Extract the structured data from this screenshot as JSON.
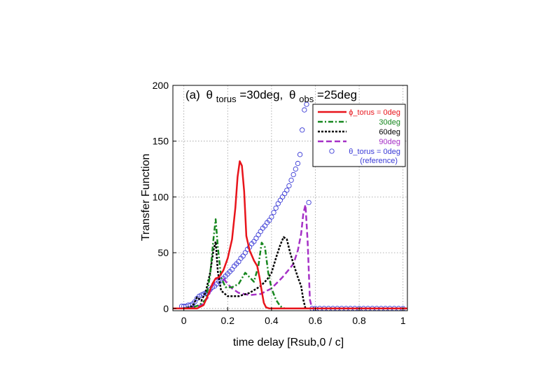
{
  "chart_data": {
    "type": "line",
    "panel_label": "(a)",
    "title_parts": {
      "theta1": "θ",
      "sub1": "torus",
      "eq1": "=30deg,",
      "theta2": "θ",
      "sub2": "obs",
      "eq2": "=25deg"
    },
    "xlabel": "time delay [Rsub,0 / c]",
    "ylabel": "Transfer Function",
    "xlim": [
      -0.05,
      1.02
    ],
    "ylim": [
      -2,
      200
    ],
    "xticks": [
      0,
      0.2,
      0.4,
      0.6,
      0.8,
      1
    ],
    "xtick_labels": [
      "0",
      "0.2",
      "0.4",
      "0.6",
      "0.8",
      "1"
    ],
    "yticks": [
      0,
      50,
      100,
      150,
      200
    ],
    "ytick_labels": [
      "0",
      "50",
      "100",
      "150",
      "200"
    ],
    "grid": true,
    "legend_position": "top-right",
    "colors": {
      "red": "#e8141b",
      "green": "#17871f",
      "black": "#000000",
      "purple": "#a530c6",
      "blue": "#3a3ad6"
    },
    "series": [
      {
        "name": "ϕ_torus = 0deg",
        "color": "#e8141b",
        "style": "solid",
        "x": [
          -0.05,
          0.0,
          0.03,
          0.06,
          0.09,
          0.11,
          0.13,
          0.145,
          0.16,
          0.18,
          0.2,
          0.22,
          0.235,
          0.245,
          0.255,
          0.265,
          0.275,
          0.285,
          0.3,
          0.32,
          0.335,
          0.345,
          0.355,
          0.365,
          0.375,
          0.39,
          0.42,
          0.6,
          1.02
        ],
        "y": [
          0,
          0,
          0,
          0,
          3,
          12,
          22,
          27,
          28,
          34,
          45,
          62,
          90,
          118,
          132,
          128,
          105,
          65,
          52,
          43,
          38,
          28,
          16,
          5,
          1,
          0,
          0,
          0,
          0
        ]
      },
      {
        "name": "30deg",
        "color": "#17871f",
        "style": "dashdot",
        "x": [
          -0.05,
          0.0,
          0.04,
          0.07,
          0.1,
          0.12,
          0.135,
          0.145,
          0.155,
          0.17,
          0.19,
          0.22,
          0.25,
          0.28,
          0.3,
          0.32,
          0.34,
          0.355,
          0.37,
          0.385,
          0.4,
          0.42,
          0.44,
          0.46,
          0.48,
          0.5,
          0.515,
          0.535,
          0.55,
          0.6,
          1.02
        ],
        "y": [
          0,
          0,
          1,
          3,
          8,
          30,
          62,
          80,
          55,
          28,
          19,
          19,
          22,
          32,
          28,
          24,
          38,
          59,
          55,
          32,
          18,
          8,
          2,
          0,
          0,
          0,
          0,
          0,
          0,
          0,
          0
        ]
      },
      {
        "name": "60deg",
        "color": "#000000",
        "style": "dotted",
        "x": [
          -0.05,
          0.0,
          0.04,
          0.06,
          0.08,
          0.1,
          0.12,
          0.135,
          0.145,
          0.155,
          0.17,
          0.2,
          0.25,
          0.3,
          0.35,
          0.38,
          0.4,
          0.42,
          0.44,
          0.455,
          0.47,
          0.485,
          0.5,
          0.52,
          0.535,
          0.545,
          0.555,
          0.6,
          1.02
        ],
        "y": [
          0,
          0,
          2,
          10,
          7,
          15,
          32,
          52,
          60,
          33,
          16,
          11,
          11,
          14,
          20,
          26,
          32,
          45,
          57,
          64,
          62,
          50,
          40,
          28,
          20,
          8,
          0,
          0,
          0
        ]
      },
      {
        "name": "90deg",
        "color": "#a530c6",
        "style": "dashed",
        "x": [
          -0.05,
          0.0,
          0.04,
          0.08,
          0.11,
          0.13,
          0.145,
          0.16,
          0.18,
          0.2,
          0.22,
          0.25,
          0.3,
          0.35,
          0.4,
          0.45,
          0.48,
          0.5,
          0.52,
          0.535,
          0.545,
          0.555,
          0.565,
          0.575,
          0.585,
          0.6,
          1.02
        ],
        "y": [
          0,
          0,
          1,
          3,
          10,
          20,
          26,
          28,
          27,
          22,
          18,
          14,
          12,
          13,
          18,
          28,
          35,
          40,
          52,
          67,
          85,
          93,
          60,
          8,
          0,
          0,
          0
        ]
      },
      {
        "name": "θ_torus = 0deg",
        "label2": "(reference)",
        "color": "#3a3ad6",
        "style": "circles",
        "x": [
          -0.01,
          0.0,
          0.01,
          0.02,
          0.03,
          0.04,
          0.05,
          0.06,
          0.07,
          0.08,
          0.09,
          0.1,
          0.11,
          0.12,
          0.13,
          0.14,
          0.15,
          0.16,
          0.17,
          0.18,
          0.19,
          0.2,
          0.21,
          0.22,
          0.23,
          0.24,
          0.25,
          0.26,
          0.27,
          0.28,
          0.29,
          0.3,
          0.31,
          0.32,
          0.33,
          0.34,
          0.35,
          0.36,
          0.37,
          0.38,
          0.39,
          0.4,
          0.41,
          0.42,
          0.43,
          0.44,
          0.45,
          0.46,
          0.47,
          0.48,
          0.49,
          0.5,
          0.51,
          0.52,
          0.53,
          0.54,
          0.55,
          0.56,
          0.57,
          0.585,
          0.6,
          0.62,
          0.64,
          0.66,
          0.68,
          0.7,
          0.72,
          0.74,
          0.76,
          0.78,
          0.8,
          0.82,
          0.84,
          0.86,
          0.88,
          0.9,
          0.92,
          0.94,
          0.96,
          0.98,
          1.0
        ],
        "y": [
          2,
          2,
          2,
          3,
          3,
          4,
          6,
          9,
          11,
          12,
          13,
          14,
          15,
          17,
          19,
          20,
          22,
          24,
          25,
          27,
          29,
          31,
          33,
          35,
          38,
          40,
          42,
          45,
          47,
          50,
          53,
          55,
          58,
          60,
          63,
          66,
          69,
          72,
          74,
          77,
          79,
          82,
          86,
          90,
          94,
          97,
          100,
          103,
          106,
          110,
          115,
          120,
          125,
          130,
          138,
          160,
          178,
          183,
          95,
          0,
          0,
          0,
          0,
          0,
          0,
          0,
          0,
          0,
          0,
          0,
          0,
          0,
          0,
          0,
          0,
          0,
          0,
          0,
          0,
          0,
          0
        ]
      }
    ]
  }
}
